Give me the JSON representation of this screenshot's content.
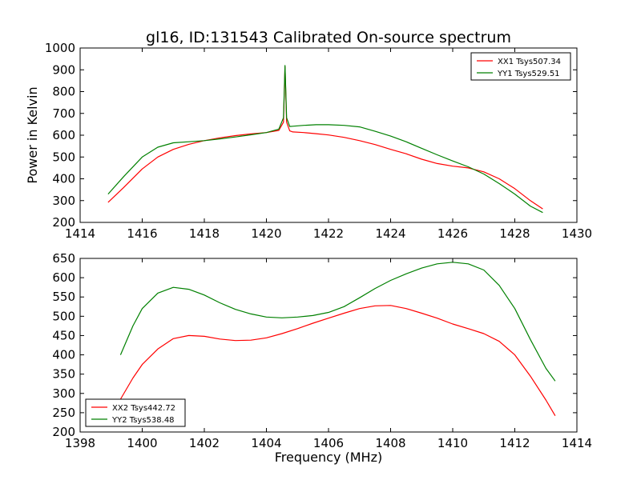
{
  "figure": {
    "title": "gl16, ID:131543 Calibrated On-source spectrum",
    "ylabel": "Power in Kelvin",
    "xlabel": "Frequency (MHz)"
  },
  "chart_data": [
    {
      "type": "line",
      "ylim": [
        200,
        1000
      ],
      "xlim": [
        1414,
        1430
      ],
      "xticks": [
        1414,
        1416,
        1418,
        1420,
        1422,
        1424,
        1426,
        1428,
        1430
      ],
      "yticks": [
        200,
        300,
        400,
        500,
        600,
        700,
        800,
        900,
        1000
      ],
      "grid": false,
      "legend_position": "top-right",
      "series": [
        {
          "name": "XX1 Tsys507.34",
          "color": "#ff0000",
          "x": [
            1414.9,
            1415.4,
            1416.0,
            1416.5,
            1417.0,
            1417.5,
            1418.0,
            1418.5,
            1419.0,
            1419.5,
            1420.0,
            1420.4,
            1420.55,
            1420.6,
            1420.65,
            1420.75,
            1420.85,
            1421.2,
            1421.6,
            1422.0,
            1422.5,
            1423.0,
            1423.5,
            1424.0,
            1424.5,
            1425.0,
            1425.5,
            1426.0,
            1426.5,
            1427.0,
            1427.5,
            1428.0,
            1428.5,
            1428.9
          ],
          "y": [
            292,
            360,
            445,
            500,
            535,
            558,
            575,
            588,
            598,
            606,
            612,
            622,
            660,
            915,
            660,
            620,
            615,
            612,
            607,
            601,
            590,
            575,
            557,
            535,
            515,
            490,
            470,
            458,
            450,
            432,
            400,
            355,
            300,
            262
          ]
        },
        {
          "name": "YY1 Tsys529.51",
          "color": "#008000",
          "x": [
            1414.9,
            1415.4,
            1416.0,
            1416.5,
            1417.0,
            1417.5,
            1418.0,
            1418.5,
            1419.0,
            1419.5,
            1420.0,
            1420.4,
            1420.55,
            1420.6,
            1420.65,
            1420.75,
            1420.85,
            1421.2,
            1421.6,
            1422.0,
            1422.5,
            1423.0,
            1423.5,
            1424.0,
            1424.5,
            1425.0,
            1425.5,
            1426.0,
            1426.5,
            1427.0,
            1427.5,
            1428.0,
            1428.5,
            1428.9
          ],
          "y": [
            330,
            410,
            500,
            545,
            565,
            570,
            575,
            583,
            592,
            602,
            612,
            628,
            680,
            920,
            680,
            640,
            641,
            645,
            648,
            648,
            645,
            638,
            618,
            596,
            570,
            540,
            510,
            482,
            455,
            422,
            378,
            330,
            275,
            245
          ]
        }
      ]
    },
    {
      "type": "line",
      "ylim": [
        200,
        650
      ],
      "xlim": [
        1398,
        1414
      ],
      "xticks": [
        1398,
        1400,
        1402,
        1404,
        1406,
        1408,
        1410,
        1412,
        1414
      ],
      "yticks": [
        200,
        250,
        300,
        350,
        400,
        450,
        500,
        550,
        600,
        650
      ],
      "grid": false,
      "legend_position": "bottom-left",
      "series": [
        {
          "name": "XX2 Tsys442.72",
          "color": "#ff0000",
          "x": [
            1399.3,
            1399.7,
            1400.0,
            1400.5,
            1401.0,
            1401.5,
            1402.0,
            1402.5,
            1403.0,
            1403.5,
            1404.0,
            1404.5,
            1405.0,
            1405.5,
            1406.0,
            1406.5,
            1407.0,
            1407.5,
            1408.0,
            1408.5,
            1409.0,
            1409.5,
            1410.0,
            1410.5,
            1411.0,
            1411.5,
            1412.0,
            1412.5,
            1413.0,
            1413.3
          ],
          "y": [
            285,
            340,
            375,
            415,
            442,
            450,
            448,
            441,
            437,
            438,
            444,
            455,
            468,
            482,
            495,
            508,
            520,
            527,
            528,
            520,
            508,
            495,
            480,
            468,
            455,
            435,
            400,
            345,
            283,
            242
          ]
        },
        {
          "name": "YY2 Tsys538.48",
          "color": "#008000",
          "x": [
            1399.3,
            1399.7,
            1400.0,
            1400.5,
            1401.0,
            1401.5,
            1402.0,
            1402.5,
            1403.0,
            1403.5,
            1404.0,
            1404.5,
            1405.0,
            1405.5,
            1406.0,
            1406.5,
            1407.0,
            1407.5,
            1408.0,
            1408.5,
            1409.0,
            1409.5,
            1410.0,
            1410.5,
            1411.0,
            1411.5,
            1412.0,
            1412.5,
            1413.0,
            1413.3
          ],
          "y": [
            400,
            475,
            520,
            560,
            575,
            570,
            555,
            535,
            518,
            506,
            498,
            496,
            498,
            502,
            510,
            525,
            548,
            572,
            593,
            610,
            625,
            636,
            640,
            636,
            620,
            580,
            520,
            440,
            365,
            332
          ]
        }
      ]
    }
  ]
}
